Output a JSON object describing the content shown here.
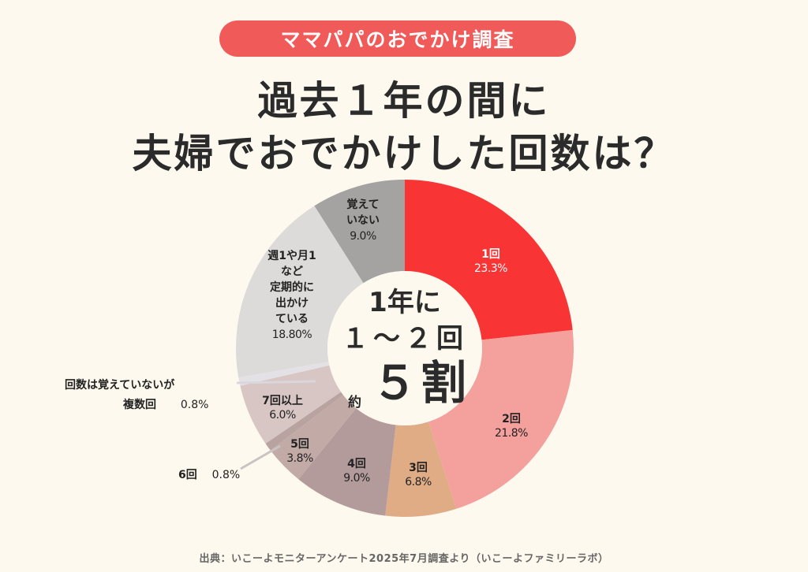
{
  "header": {
    "badge": "ママパパのおでかけ調査",
    "title_line1": "過去１年の間に",
    "title_line2": "夫婦でおでかけした回数は？"
  },
  "center": {
    "line1": "1年に",
    "line2": "１～２回",
    "prefix": "約",
    "line3": "５割"
  },
  "labels": {
    "s1": {
      "name": "1回",
      "pct": "23.3%"
    },
    "s2": {
      "name": "2回",
      "pct": "21.8%"
    },
    "s3": {
      "name": "3回",
      "pct": "6.8%"
    },
    "s4": {
      "name": "4回",
      "pct": "9.0%"
    },
    "s5": {
      "name": "5回",
      "pct": "3.8%"
    },
    "s6": {
      "name": "6回",
      "pct": "0.8%"
    },
    "s7": {
      "name": "7回以上",
      "pct": "6.0%"
    },
    "s8": {
      "name1": "回数は覚えていないが",
      "name2": "複数回",
      "pct": "0.8%"
    },
    "s9": {
      "name1": "週1や月1",
      "name2": "など",
      "name3": "定期的に",
      "name4": "出かけ",
      "name5": "ている",
      "pct": "18.80%"
    },
    "s10": {
      "name1": "覚えて",
      "name2": "いない",
      "pct": "9.0%"
    }
  },
  "source": "出典：いこーよモニターアンケート2025年7月調査より（いこーよファミリーラボ）",
  "colors": {
    "background": "#fdf9ee",
    "badge": "#f05a58",
    "text": "#2b2b2b"
  },
  "chart_data": {
    "type": "pie",
    "variant": "donut",
    "title": "過去１年の間に夫婦でおでかけした回数は？",
    "subtitle": "ママパパのおでかけ調査",
    "center_annotation": "1年に１～２回 約５割",
    "start_angle": "12 o'clock, clockwise",
    "categories": [
      "1回",
      "2回",
      "3回",
      "4回",
      "5回",
      "6回",
      "7回以上",
      "回数は覚えていないが複数回",
      "週1や月1など定期的に出かけている",
      "覚えていない"
    ],
    "values": [
      23.3,
      21.8,
      6.8,
      9.0,
      3.8,
      0.8,
      6.0,
      0.8,
      18.8,
      9.0
    ],
    "unit": "%",
    "colors": [
      "#f93434",
      "#f4a09c",
      "#dfac86",
      "#b39b9b",
      "#c2aaa6",
      "#b8a3a1",
      "#d8c6c4",
      "#e3e1e6",
      "#dcdbd9",
      "#a4a3a1"
    ],
    "source": "いこーよモニターアンケート2025年7月調査（いこーよファミリーラボ）"
  }
}
